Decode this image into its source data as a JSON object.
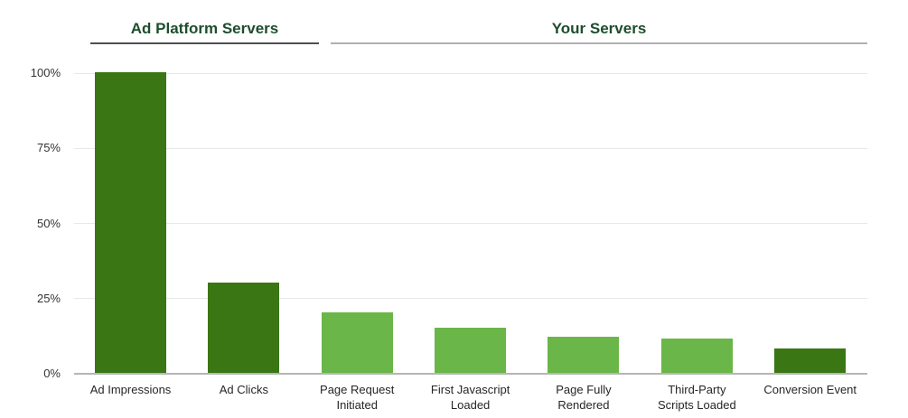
{
  "chart_data": {
    "type": "bar",
    "title": "",
    "categories": [
      "Ad Impressions",
      "Ad Clicks",
      "Page Request Initiated",
      "First Javascript Loaded",
      "Page Fully Rendered",
      "Third-Party Scripts Loaded",
      "Conversion Event"
    ],
    "category_lines": [
      [
        "Ad Impressions"
      ],
      [
        "Ad Clicks"
      ],
      [
        "Page Request",
        "Initiated"
      ],
      [
        "First Javascript",
        "Loaded"
      ],
      [
        "Page Fully",
        "Rendered"
      ],
      [
        "Third-Party",
        "Scripts Loaded"
      ],
      [
        "Conversion Event"
      ]
    ],
    "values": [
      100,
      30,
      20,
      15,
      12,
      11.5,
      8
    ],
    "unit": "%",
    "bar_color_keys": [
      "dark",
      "dark",
      "light",
      "light",
      "light",
      "light",
      "dark"
    ],
    "palette": {
      "dark": "#3a7614",
      "light": "#6ab648"
    },
    "groups": [
      {
        "label": "Ad Platform Servers",
        "bar_indexes": [
          0,
          1
        ]
      },
      {
        "label": "Your Servers",
        "bar_indexes": [
          2,
          3,
          4,
          5,
          6
        ]
      }
    ],
    "xlabel": "",
    "ylabel": "",
    "ylim": [
      0,
      100
    ],
    "ytick_values": [
      0,
      25,
      50,
      75,
      100
    ],
    "ytick_labels": [
      "0%",
      "25%",
      "50%",
      "75%",
      "100%"
    ],
    "grid": true,
    "legend": "none"
  },
  "colors": {
    "bar_dark": "#3a7614",
    "bar_light": "#6ab648",
    "header_text": "#1d4e2c",
    "underline_left": "#4f4f4f",
    "underline_right": "#b0b0b0",
    "gridline": "#e8e8e8",
    "baseline": "#b5b5b5",
    "axis_label": "#333333",
    "category_label": "#262626",
    "background": "#ffffff"
  }
}
